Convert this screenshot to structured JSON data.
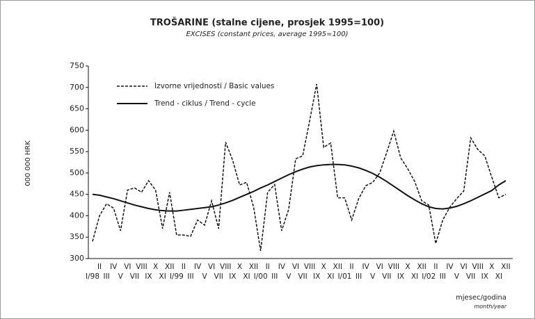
{
  "chart_data": {
    "type": "line",
    "title": "TROŠARINE (stalne cijene, prosjek 1995=100)",
    "subtitle": "EXCISES (constant prices, average 1995=100)",
    "y_label": "000 000 HRK",
    "x_label": "mjesec/godina",
    "x_label_en": "month/year",
    "categories": [
      "I/98",
      "II",
      "III",
      "IV",
      "V",
      "VI",
      "VII",
      "VIII",
      "IX",
      "X",
      "XI",
      "XII",
      "I/99",
      "II",
      "III",
      "IV",
      "V",
      "VI",
      "VII",
      "VIII",
      "IX",
      "X",
      "XI",
      "XII",
      "I/00",
      "II",
      "III",
      "IV",
      "V",
      "VI",
      "VII",
      "VIII",
      "IX",
      "X",
      "XI",
      "XII",
      "I/01",
      "II",
      "III",
      "IV",
      "V",
      "VI",
      "VII",
      "VIII",
      "IX",
      "X",
      "XI",
      "XII",
      "I/02",
      "II",
      "III",
      "IV",
      "V",
      "VI",
      "VII",
      "VIII",
      "IX",
      "X",
      "XI",
      "XII"
    ],
    "series": [
      {
        "name": "Izvorne vrijednosti / Basic values",
        "color": "#111",
        "dash": true,
        "values": [
          340,
          400,
          428,
          418,
          365,
          460,
          465,
          455,
          482,
          460,
          370,
          455,
          355,
          355,
          352,
          390,
          378,
          435,
          370,
          572,
          530,
          472,
          478,
          420,
          318,
          455,
          473,
          365,
          415,
          533,
          540,
          622,
          708,
          560,
          570,
          442,
          442,
          390,
          440,
          470,
          478,
          500,
          548,
          598,
          535,
          510,
          480,
          435,
          425,
          335,
          390,
          420,
          440,
          458,
          582,
          555,
          540,
          490,
          442,
          450
        ]
      },
      {
        "name": "Trend - ciklus / Trend - cycle",
        "color": "#111",
        "dash": false,
        "values": [
          450,
          448,
          444,
          440,
          435,
          430,
          425,
          421,
          417,
          414,
          412,
          411,
          411,
          413,
          415,
          417,
          419,
          421,
          425,
          430,
          436,
          443,
          450,
          457,
          465,
          472,
          480,
          488,
          496,
          503,
          509,
          514,
          517,
          519,
          520,
          520,
          519,
          516,
          512,
          506,
          499,
          490,
          480,
          469,
          458,
          447,
          437,
          428,
          421,
          417,
          416,
          418,
          422,
          428,
          435,
          443,
          451,
          459,
          472,
          482
        ]
      }
    ],
    "ylim": [
      300,
      750
    ],
    "yticks": [
      300,
      350,
      400,
      450,
      500,
      550,
      600,
      650,
      700,
      750
    ]
  }
}
